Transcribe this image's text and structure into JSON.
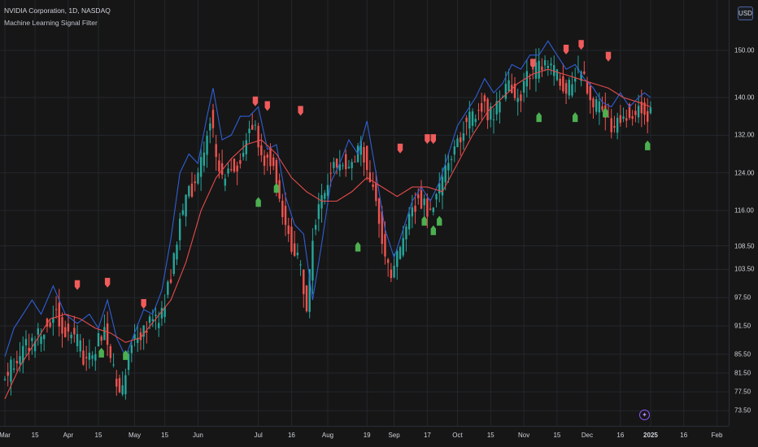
{
  "header": {
    "symbol_line": "NVIDIA Corporation, 1D, NASDAQ",
    "indicator_line": "Machine Learning Signal Filter"
  },
  "currency_button": "USD",
  "theme": {
    "background": "#161616",
    "grid": "#23262d",
    "bull_candle": "#26a69a",
    "bear_candle": "#ef5350",
    "blue_line": "#2f5fd6",
    "red_ma": "#e64b4b",
    "buy_marker": "#4caf50",
    "sell_marker": "#f05b5b"
  },
  "icons": {
    "info": "info-icon"
  },
  "chart_data": {
    "type": "candlestick",
    "title": "NVIDIA Corporation, 1D, NASDAQ",
    "indicator": "Machine Learning Signal Filter",
    "y_axis": {
      "ylim": [
        70.0,
        156.0
      ],
      "ticks": [
        150.0,
        140.0,
        132.0,
        124.0,
        116.0,
        108.5,
        103.5,
        97.5,
        91.5,
        85.5,
        81.5,
        77.5,
        73.5
      ],
      "tick_labels": [
        "150.00",
        "140.00",
        "132.00",
        "124.00",
        "116.00",
        "108.50",
        "103.50",
        "97.50",
        "91.50",
        "85.50",
        "81.50",
        "77.50",
        "73.50"
      ]
    },
    "x_axis": {
      "ticks": [
        "Mar",
        "15",
        "Apr",
        "15",
        "May",
        "15",
        "Jun",
        "Jul",
        "16",
        "Aug",
        "19",
        "Sep",
        "17",
        "Oct",
        "15",
        "Nov",
        "15",
        "Dec",
        "16",
        "2025",
        "16",
        "Feb"
      ],
      "tick_index": [
        0,
        10,
        21,
        31,
        43,
        53,
        64,
        84,
        95,
        107,
        120,
        129,
        140,
        150,
        161,
        172,
        183,
        193,
        204,
        214,
        225,
        236
      ],
      "bold_ticks": [
        "2025"
      ]
    },
    "price_path": {
      "knots": [
        [
          0,
          79
        ],
        [
          5,
          85
        ],
        [
          10,
          88
        ],
        [
          15,
          92
        ],
        [
          18,
          95
        ],
        [
          21,
          90
        ],
        [
          25,
          88
        ],
        [
          28,
          84
        ],
        [
          31,
          87
        ],
        [
          34,
          90
        ],
        [
          37,
          82
        ],
        [
          40,
          77
        ],
        [
          43,
          88
        ],
        [
          46,
          90
        ],
        [
          50,
          92
        ],
        [
          53,
          94
        ],
        [
          56,
          102
        ],
        [
          59,
          114
        ],
        [
          62,
          120
        ],
        [
          64,
          122
        ],
        [
          67,
          129
        ],
        [
          69,
          136
        ],
        [
          71,
          128
        ],
        [
          73,
          123
        ],
        [
          75,
          126
        ],
        [
          77,
          124
        ],
        [
          79,
          128
        ],
        [
          81,
          131
        ],
        [
          84,
          135
        ],
        [
          86,
          126
        ],
        [
          88,
          128
        ],
        [
          90,
          125
        ],
        [
          92,
          117
        ],
        [
          94,
          113
        ],
        [
          96,
          108
        ],
        [
          99,
          104
        ],
        [
          101,
          95
        ],
        [
          103,
          110
        ],
        [
          105,
          117
        ],
        [
          107,
          121
        ],
        [
          110,
          125
        ],
        [
          113,
          127
        ],
        [
          116,
          126
        ],
        [
          119,
          131
        ],
        [
          121,
          125
        ],
        [
          124,
          118
        ],
        [
          126,
          110
        ],
        [
          129,
          103
        ],
        [
          132,
          107
        ],
        [
          135,
          115
        ],
        [
          138,
          119
        ],
        [
          141,
          116
        ],
        [
          144,
          119
        ],
        [
          147,
          124
        ],
        [
          150,
          129
        ],
        [
          153,
          134
        ],
        [
          156,
          136
        ],
        [
          159,
          139
        ],
        [
          162,
          136
        ],
        [
          165,
          139
        ],
        [
          168,
          142
        ],
        [
          171,
          139
        ],
        [
          174,
          144
        ],
        [
          177,
          146
        ],
        [
          180,
          148
        ],
        [
          183,
          145
        ],
        [
          185,
          143
        ],
        [
          188,
          142
        ],
        [
          190,
          145
        ],
        [
          193,
          144
        ],
        [
          196,
          139
        ],
        [
          199,
          138
        ],
        [
          201,
          136
        ],
        [
          203,
          133
        ],
        [
          206,
          137
        ],
        [
          209,
          136
        ],
        [
          212,
          138
        ],
        [
          214,
          136
        ]
      ],
      "candle_count": 215,
      "last_close": 137.0
    },
    "blue_line": {
      "name": "",
      "points": [
        [
          0,
          85
        ],
        [
          3,
          91
        ],
        [
          6,
          94
        ],
        [
          9,
          97
        ],
        [
          12,
          94
        ],
        [
          16,
          100
        ],
        [
          20,
          94
        ],
        [
          24,
          92
        ],
        [
          28,
          94
        ],
        [
          31,
          91
        ],
        [
          34,
          97
        ],
        [
          37,
          89
        ],
        [
          40,
          85
        ],
        [
          43,
          90
        ],
        [
          46,
          95
        ],
        [
          49,
          94
        ],
        [
          52,
          99
        ],
        [
          55,
          110
        ],
        [
          58,
          124
        ],
        [
          61,
          128
        ],
        [
          64,
          126
        ],
        [
          67,
          136
        ],
        [
          69,
          142
        ],
        [
          72,
          131
        ],
        [
          75,
          132
        ],
        [
          78,
          136
        ],
        [
          81,
          136
        ],
        [
          84,
          138
        ],
        [
          87,
          129
        ],
        [
          90,
          130
        ],
        [
          93,
          119
        ],
        [
          96,
          113
        ],
        [
          99,
          111
        ],
        [
          102,
          97
        ],
        [
          105,
          109
        ],
        [
          108,
          122
        ],
        [
          111,
          126
        ],
        [
          114,
          131
        ],
        [
          117,
          128
        ],
        [
          120,
          135
        ],
        [
          123,
          124
        ],
        [
          126,
          112
        ],
        [
          129,
          106
        ],
        [
          132,
          112
        ],
        [
          135,
          118
        ],
        [
          138,
          121
        ],
        [
          141,
          118
        ],
        [
          144,
          122
        ],
        [
          147,
          128
        ],
        [
          150,
          134
        ],
        [
          153,
          137
        ],
        [
          156,
          140
        ],
        [
          159,
          144
        ],
        [
          162,
          141
        ],
        [
          165,
          143
        ],
        [
          168,
          147
        ],
        [
          171,
          146
        ],
        [
          174,
          149
        ],
        [
          177,
          149
        ],
        [
          180,
          152
        ],
        [
          183,
          149
        ],
        [
          186,
          146
        ],
        [
          189,
          147
        ],
        [
          192,
          144
        ],
        [
          195,
          142
        ],
        [
          198,
          139
        ],
        [
          201,
          138
        ],
        [
          204,
          141
        ],
        [
          207,
          138
        ],
        [
          210,
          140
        ],
        [
          212,
          141
        ],
        [
          214,
          140
        ]
      ]
    },
    "red_ma": {
      "name": "",
      "points": [
        [
          0,
          76
        ],
        [
          5,
          83
        ],
        [
          10,
          88
        ],
        [
          15,
          93
        ],
        [
          20,
          94
        ],
        [
          25,
          93
        ],
        [
          30,
          91
        ],
        [
          35,
          90
        ],
        [
          40,
          88
        ],
        [
          45,
          89
        ],
        [
          50,
          93
        ],
        [
          55,
          97
        ],
        [
          60,
          105
        ],
        [
          65,
          116
        ],
        [
          70,
          123
        ],
        [
          75,
          127
        ],
        [
          80,
          130
        ],
        [
          85,
          131
        ],
        [
          90,
          128
        ],
        [
          95,
          123
        ],
        [
          100,
          120
        ],
        [
          105,
          118
        ],
        [
          110,
          118
        ],
        [
          115,
          120
        ],
        [
          120,
          123
        ],
        [
          125,
          121
        ],
        [
          130,
          119
        ],
        [
          135,
          121
        ],
        [
          140,
          121
        ],
        [
          145,
          120
        ],
        [
          150,
          126
        ],
        [
          155,
          132
        ],
        [
          160,
          137
        ],
        [
          165,
          140
        ],
        [
          170,
          143
        ],
        [
          175,
          145
        ],
        [
          180,
          146
        ],
        [
          185,
          145
        ],
        [
          190,
          144
        ],
        [
          195,
          143
        ],
        [
          200,
          142
        ],
        [
          205,
          140
        ],
        [
          210,
          139
        ],
        [
          214,
          138
        ]
      ]
    },
    "sell_signals": [
      {
        "index": 24,
        "price": 100.0
      },
      {
        "index": 34,
        "price": 100.5
      },
      {
        "index": 46,
        "price": 96.0
      },
      {
        "index": 83,
        "price": 139.0
      },
      {
        "index": 87,
        "price": 138.0
      },
      {
        "index": 98,
        "price": 137.0
      },
      {
        "index": 131,
        "price": 129.0
      },
      {
        "index": 140,
        "price": 131.0
      },
      {
        "index": 142,
        "price": 131.0
      },
      {
        "index": 175,
        "price": 147.0
      },
      {
        "index": 186,
        "price": 150.0
      },
      {
        "index": 191,
        "price": 151.0
      },
      {
        "index": 200,
        "price": 148.5
      }
    ],
    "buy_signals": [
      {
        "index": 32,
        "price": 86.0
      },
      {
        "index": 40,
        "price": 85.5
      },
      {
        "index": 84,
        "price": 118.0
      },
      {
        "index": 90,
        "price": 121.0
      },
      {
        "index": 117,
        "price": 108.5
      },
      {
        "index": 139,
        "price": 114.0
      },
      {
        "index": 142,
        "price": 112.0
      },
      {
        "index": 144,
        "price": 114.0
      },
      {
        "index": 177,
        "price": 136.0
      },
      {
        "index": 189,
        "price": 136.0
      },
      {
        "index": 199,
        "price": 137.0
      },
      {
        "index": 213,
        "price": 130.0
      }
    ]
  }
}
